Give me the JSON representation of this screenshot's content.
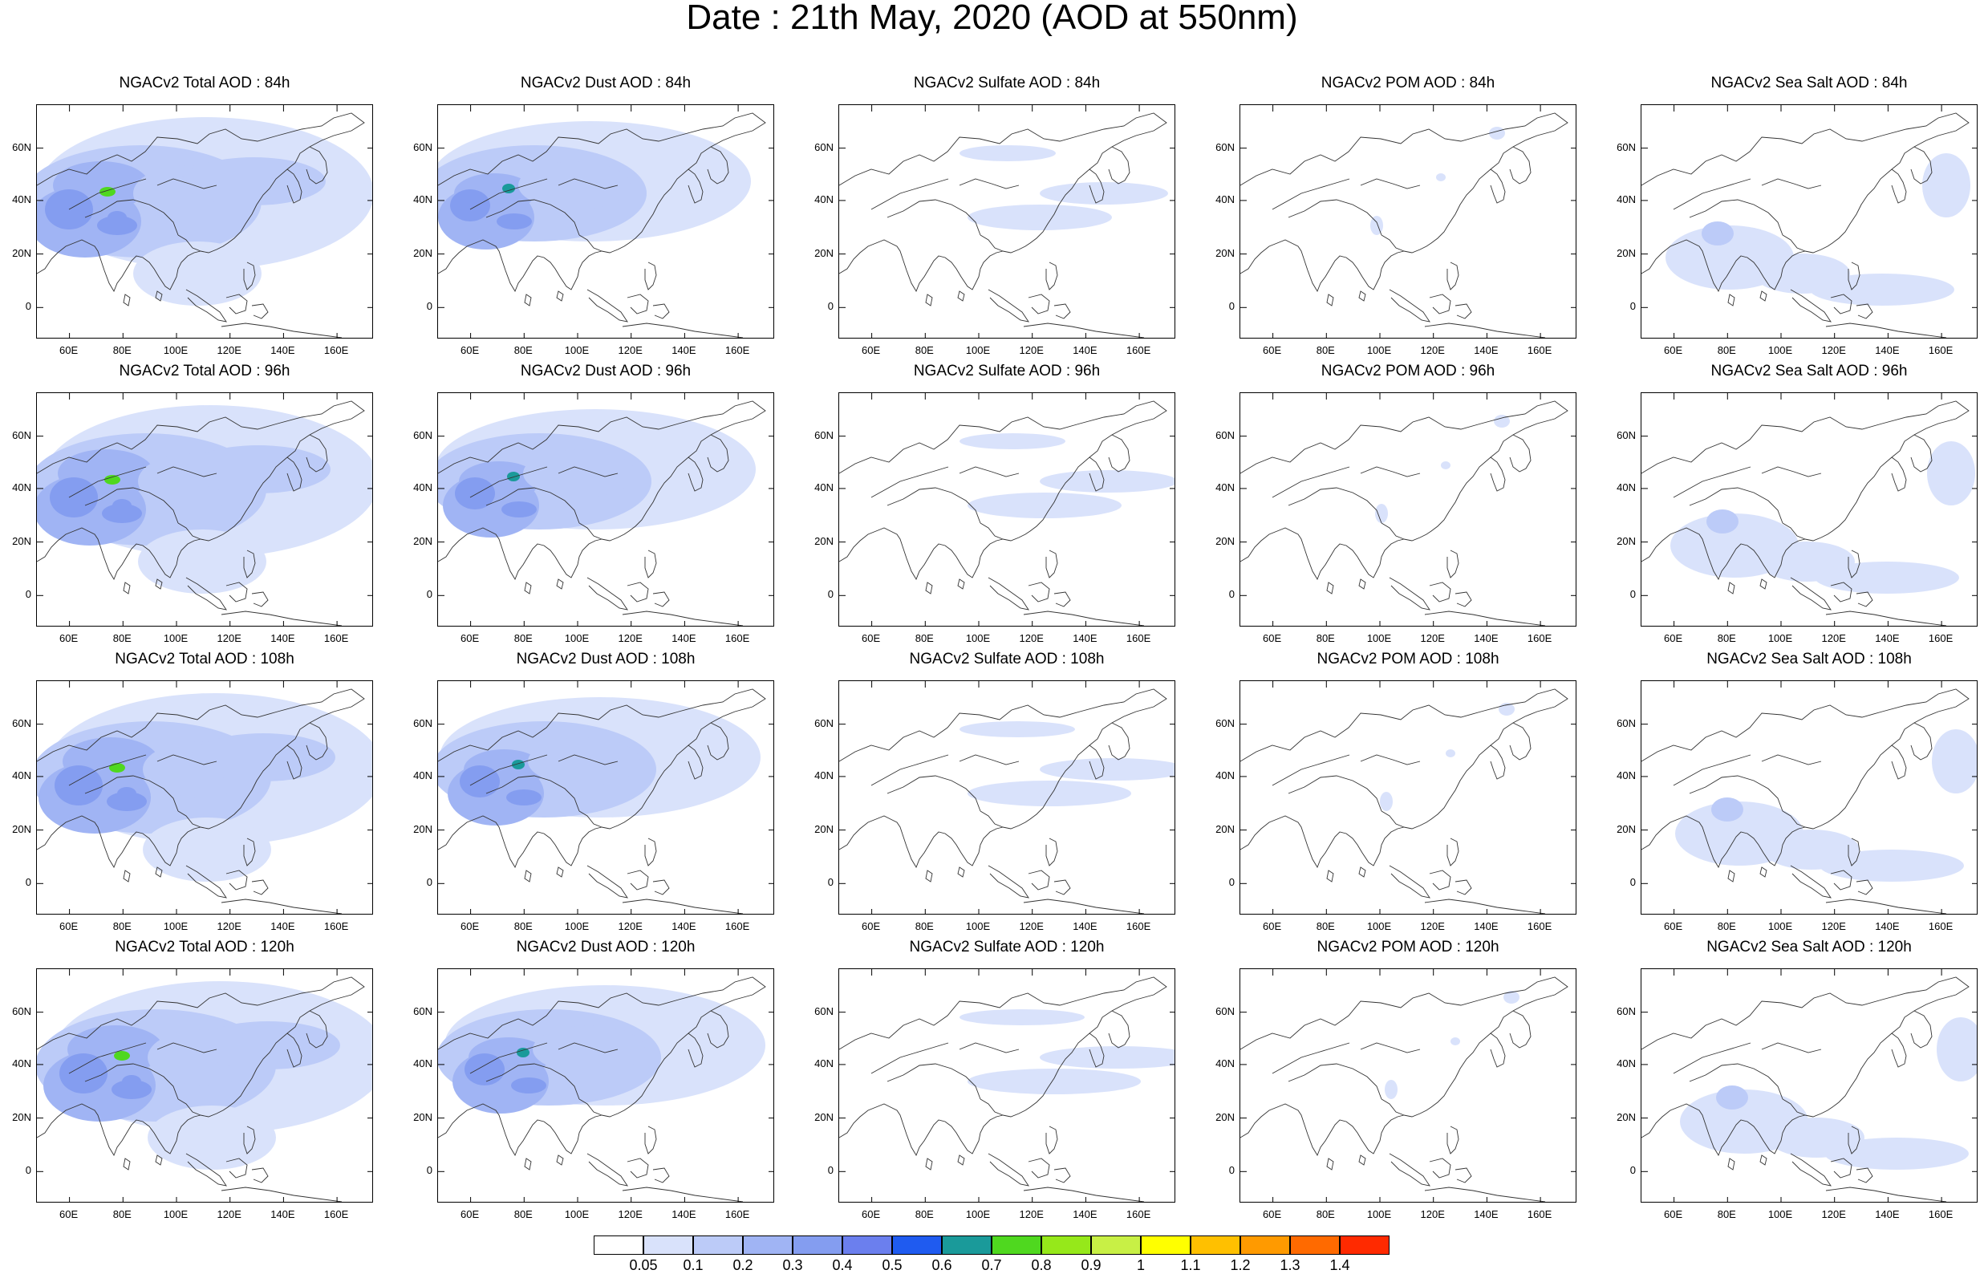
{
  "title": "Date : 21th May, 2020 (AOD at 550nm)",
  "panels": [
    [
      "NGACv2 Total AOD : 84h",
      "NGACv2 Dust AOD : 84h",
      "NGACv2 Sulfate AOD : 84h",
      "NGACv2 POM AOD : 84h",
      "NGACv2 Sea Salt AOD : 84h"
    ],
    [
      "NGACv2 Total AOD : 96h",
      "NGACv2 Dust AOD : 96h",
      "NGACv2 Sulfate AOD : 96h",
      "NGACv2 POM AOD : 96h",
      "NGACv2 Sea Salt AOD : 96h"
    ],
    [
      "NGACv2 Total AOD : 108h",
      "NGACv2 Dust AOD : 108h",
      "NGACv2 Sulfate AOD : 108h",
      "NGACv2 POM AOD : 108h",
      "NGACv2 Sea Salt AOD : 108h"
    ],
    [
      "NGACv2 Total AOD : 120h",
      "NGACv2 Dust AOD : 120h",
      "NGACv2 Sulfate AOD : 120h",
      "NGACv2 POM AOD : 120h",
      "NGACv2 Sea Salt  AOD : 120h"
    ]
  ],
  "lat_labels": [
    "60N",
    "40N",
    "20N",
    "0"
  ],
  "lon_labels": [
    "60E",
    "80E",
    "100E",
    "120E",
    "140E",
    "160E"
  ],
  "colorbar": {
    "labels": [
      "0.05",
      "0.1",
      "0.2",
      "0.3",
      "0.4",
      "0.5",
      "0.6",
      "0.7",
      "0.8",
      "0.9",
      "1",
      "1.1",
      "1.2",
      "1.3",
      "1.4"
    ],
    "colors": [
      "#ffffff",
      "#d9e2fb",
      "#bccbf8",
      "#a0b4f4",
      "#849df0",
      "#6b7fee",
      "#1f5bf0",
      "#1a9a9a",
      "#4fd81f",
      "#96e81a",
      "#c8f045",
      "#ffff00",
      "#ffc000",
      "#ff9a00",
      "#ff6a00",
      "#ff2a00"
    ]
  }
}
